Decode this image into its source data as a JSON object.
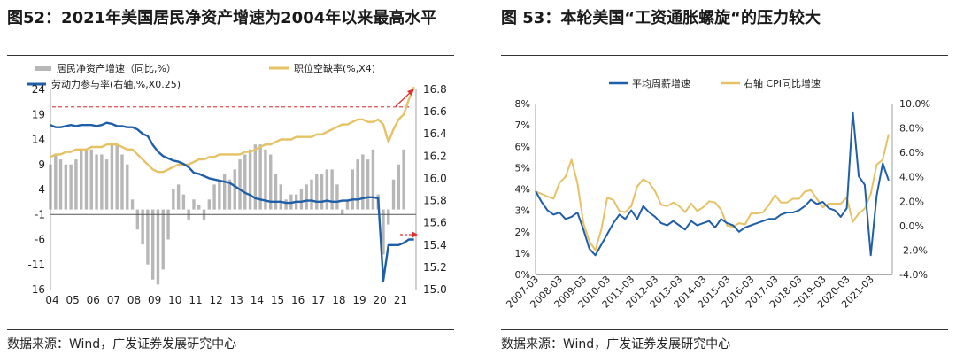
{
  "panels": [
    {
      "title": "图52：2021年美国居民净资产增速为2004年以来最高水平",
      "source": "数据来源：Wind，广发证券发展研究中心"
    },
    {
      "title": "图 53：本轮美国“工资通胀螺旋“的压力较大",
      "source": "数据来源：Wind，广发证券发展研究中心"
    }
  ],
  "chart_data": [
    {
      "type": "bar+line",
      "title": "",
      "x_tick_labels": [
        "04",
        "05",
        "06",
        "07",
        "08",
        "09",
        "10",
        "11",
        "12",
        "13",
        "14",
        "15",
        "16",
        "17",
        "18",
        "19",
        "20",
        "21"
      ],
      "left_axis": {
        "ticks": [
          24,
          19,
          14,
          9,
          4,
          -1,
          -6,
          -11,
          -16
        ],
        "ylim": [
          -16,
          24
        ]
      },
      "right_axis": {
        "ticks": [
          16.8,
          16.6,
          16.4,
          16.2,
          16.0,
          15.8,
          15.6,
          15.4,
          15.2,
          15.0
        ],
        "ylim": [
          15.0,
          16.8
        ]
      },
      "reference_line": {
        "axis": "left",
        "value": 20.5,
        "style": "dashed",
        "color": "#e84b4b"
      },
      "series": [
        {
          "name": "居民净资产增速（同比,%）",
          "kind": "bar",
          "axis": "left",
          "color": "#b7b7b7",
          "x": [
            2004.0,
            2004.25,
            2004.5,
            2004.75,
            2005.0,
            2005.25,
            2005.5,
            2005.75,
            2006.0,
            2006.25,
            2006.5,
            2006.75,
            2007.0,
            2007.25,
            2007.5,
            2007.75,
            2008.0,
            2008.25,
            2008.5,
            2008.75,
            2009.0,
            2009.25,
            2009.5,
            2009.75,
            2010.0,
            2010.25,
            2010.5,
            2010.75,
            2011.0,
            2011.25,
            2011.5,
            2011.75,
            2012.0,
            2012.25,
            2012.5,
            2012.75,
            2013.0,
            2013.25,
            2013.5,
            2013.75,
            2014.0,
            2014.25,
            2014.5,
            2014.75,
            2015.0,
            2015.25,
            2015.5,
            2015.75,
            2016.0,
            2016.25,
            2016.5,
            2016.75,
            2017.0,
            2017.25,
            2017.5,
            2017.75,
            2018.0,
            2018.25,
            2018.5,
            2018.75,
            2019.0,
            2019.25,
            2019.5,
            2019.75,
            2020.0,
            2020.25,
            2020.5,
            2020.75,
            2021.0,
            2021.25
          ],
          "values": [
            9,
            11,
            10,
            9,
            9,
            10,
            12,
            12,
            12,
            11,
            11,
            10,
            13,
            13,
            11,
            9,
            2,
            -4,
            -7,
            -11,
            -14,
            -15,
            -12,
            -6,
            4,
            5,
            3,
            -2,
            2,
            1,
            -2,
            2,
            5,
            6,
            7,
            6,
            8,
            10,
            11,
            12,
            13,
            13,
            12,
            11,
            7,
            5,
            2,
            3,
            3,
            4,
            5,
            6,
            7,
            7,
            8,
            8,
            5,
            -1,
            2,
            8,
            10,
            11,
            10,
            12,
            3,
            -9,
            -3,
            6,
            9,
            12
          ]
        },
        {
          "name": "职位空缺率(%,X4)",
          "kind": "line",
          "axis": "left",
          "color": "#e6c265",
          "x": [
            2004.0,
            2004.25,
            2004.5,
            2004.75,
            2005.0,
            2005.25,
            2005.5,
            2005.75,
            2006.0,
            2006.25,
            2006.5,
            2006.75,
            2007.0,
            2007.25,
            2007.5,
            2007.75,
            2008.0,
            2008.25,
            2008.5,
            2008.75,
            2009.0,
            2009.25,
            2009.5,
            2009.75,
            2010.0,
            2010.25,
            2010.5,
            2010.75,
            2011.0,
            2011.25,
            2011.5,
            2011.75,
            2012.0,
            2012.25,
            2012.5,
            2012.75,
            2013.0,
            2013.25,
            2013.5,
            2013.75,
            2014.0,
            2014.25,
            2014.5,
            2014.75,
            2015.0,
            2015.25,
            2015.5,
            2015.75,
            2016.0,
            2016.25,
            2016.5,
            2016.75,
            2017.0,
            2017.25,
            2017.5,
            2017.75,
            2018.0,
            2018.25,
            2018.5,
            2018.75,
            2019.0,
            2019.25,
            2019.5,
            2019.75,
            2020.0,
            2020.25,
            2020.5,
            2020.75,
            2021.0,
            2021.25,
            2021.5,
            2021.75
          ],
          "values": [
            10.5,
            11,
            11,
            11.5,
            11.5,
            12,
            12,
            12,
            12.5,
            12.5,
            12.5,
            13,
            13,
            13,
            12.5,
            12,
            12,
            11,
            10,
            9,
            8,
            7.5,
            7.5,
            8,
            8.5,
            9,
            9,
            9,
            9.5,
            10,
            10,
            10.5,
            10.5,
            11,
            11,
            11,
            11,
            11,
            11.5,
            11.5,
            12,
            12.5,
            13,
            13,
            13.5,
            14,
            14,
            14,
            14.5,
            14.5,
            14.5,
            14.5,
            15,
            15,
            15.5,
            16,
            16.5,
            17,
            17,
            17.5,
            18,
            18,
            17.5,
            17.5,
            18,
            17,
            13.5,
            16,
            18,
            19,
            22,
            24.5
          ]
        },
        {
          "name": "劳动力参与率(右轴,%,X0.25)",
          "kind": "line",
          "axis": "right",
          "color": "#1f5ea8",
          "x": [
            2004.0,
            2004.25,
            2004.5,
            2004.75,
            2005.0,
            2005.25,
            2005.5,
            2005.75,
            2006.0,
            2006.25,
            2006.5,
            2006.75,
            2007.0,
            2007.25,
            2007.5,
            2007.75,
            2008.0,
            2008.25,
            2008.5,
            2008.75,
            2009.0,
            2009.25,
            2009.5,
            2009.75,
            2010.0,
            2010.25,
            2010.5,
            2010.75,
            2011.0,
            2011.25,
            2011.5,
            2011.75,
            2012.0,
            2012.25,
            2012.5,
            2012.75,
            2013.0,
            2013.25,
            2013.5,
            2013.75,
            2014.0,
            2014.25,
            2014.5,
            2014.75,
            2015.0,
            2015.25,
            2015.5,
            2015.75,
            2016.0,
            2016.25,
            2016.5,
            2016.75,
            2017.0,
            2017.25,
            2017.5,
            2017.75,
            2018.0,
            2018.25,
            2018.5,
            2018.75,
            2019.0,
            2019.25,
            2019.5,
            2019.75,
            2020.0,
            2020.25,
            2020.5,
            2020.75,
            2021.0,
            2021.25,
            2021.5,
            2021.75
          ],
          "values": [
            16.48,
            16.46,
            16.46,
            16.47,
            16.48,
            16.47,
            16.48,
            16.48,
            16.48,
            16.47,
            16.48,
            16.5,
            16.49,
            16.47,
            16.47,
            16.46,
            16.46,
            16.44,
            16.4,
            16.38,
            16.3,
            16.24,
            16.2,
            16.18,
            16.16,
            16.15,
            16.13,
            16.1,
            16.05,
            16.04,
            16.02,
            16.0,
            15.99,
            15.98,
            15.97,
            15.96,
            15.93,
            15.9,
            15.87,
            15.85,
            15.82,
            15.81,
            15.8,
            15.79,
            15.79,
            15.79,
            15.78,
            15.78,
            15.79,
            15.79,
            15.8,
            15.8,
            15.79,
            15.79,
            15.8,
            15.79,
            15.79,
            15.8,
            15.8,
            15.81,
            15.81,
            15.82,
            15.83,
            15.83,
            15.82,
            15.08,
            15.4,
            15.4,
            15.4,
            15.42,
            15.45,
            15.45
          ]
        }
      ],
      "annotations": [
        {
          "type": "arrow",
          "color": "#e03030",
          "near": "top-right"
        },
        {
          "type": "arrow",
          "color": "#e03030",
          "near": "right"
        }
      ]
    },
    {
      "type": "line",
      "title": "",
      "x_tick_labels": [
        "2007-03",
        "2008-03",
        "2009-03",
        "2010-03",
        "2011-03",
        "2012-03",
        "2013-03",
        "2014-03",
        "2015-03",
        "2016-03",
        "2017-03",
        "2018-03",
        "2019-03",
        "2020-03",
        "2021-03"
      ],
      "left_axis": {
        "ticks": [
          "8%",
          "7%",
          "6%",
          "5%",
          "4%",
          "3%",
          "2%",
          "1%",
          "0%"
        ],
        "ylim": [
          0,
          8
        ]
      },
      "right_axis": {
        "ticks": [
          "10.0%",
          "8.0%",
          "6.0%",
          "4.0%",
          "2.0%",
          "0.0%",
          "-2.0%",
          "-4.0%"
        ],
        "ylim": [
          -4,
          10
        ]
      },
      "legend_position": "top",
      "series": [
        {
          "name": "平均周薪增速",
          "axis": "left",
          "color": "#1f5ea8",
          "x": [
            2007.0,
            2007.25,
            2007.5,
            2007.75,
            2008.0,
            2008.25,
            2008.5,
            2008.75,
            2009.0,
            2009.25,
            2009.5,
            2009.75,
            2010.0,
            2010.25,
            2010.5,
            2010.75,
            2011.0,
            2011.25,
            2011.5,
            2011.75,
            2012.0,
            2012.25,
            2012.5,
            2012.75,
            2013.0,
            2013.25,
            2013.5,
            2013.75,
            2014.0,
            2014.25,
            2014.5,
            2014.75,
            2015.0,
            2015.25,
            2015.5,
            2015.75,
            2016.0,
            2016.25,
            2016.5,
            2016.75,
            2017.0,
            2017.25,
            2017.5,
            2017.75,
            2018.0,
            2018.25,
            2018.5,
            2018.75,
            2019.0,
            2019.25,
            2019.5,
            2019.75,
            2020.0,
            2020.25,
            2020.5,
            2020.75,
            2021.0,
            2021.25,
            2021.5,
            2021.75
          ],
          "values": [
            3.9,
            3.4,
            3.0,
            2.8,
            2.9,
            2.6,
            2.7,
            2.9,
            2.1,
            1.2,
            0.9,
            1.4,
            1.9,
            2.4,
            2.8,
            2.6,
            3.0,
            2.6,
            3.2,
            2.9,
            2.7,
            2.4,
            2.3,
            2.5,
            2.3,
            2.1,
            2.5,
            2.3,
            2.4,
            2.5,
            2.2,
            2.6,
            2.4,
            2.3,
            2.0,
            2.2,
            2.3,
            2.4,
            2.5,
            2.6,
            2.6,
            2.8,
            2.9,
            2.9,
            3.0,
            3.2,
            3.5,
            3.3,
            3.4,
            3.1,
            3.0,
            2.7,
            3.1,
            7.6,
            4.6,
            4.2,
            0.9,
            3.7,
            5.2,
            4.4
          ]
        },
        {
          "name": "右轴 CPI同比增速",
          "axis": "right",
          "color": "#e6c265",
          "x": [
            2007.0,
            2007.25,
            2007.5,
            2007.75,
            2008.0,
            2008.25,
            2008.5,
            2008.75,
            2009.0,
            2009.25,
            2009.5,
            2009.75,
            2010.0,
            2010.25,
            2010.5,
            2010.75,
            2011.0,
            2011.25,
            2011.5,
            2011.75,
            2012.0,
            2012.25,
            2012.5,
            2012.75,
            2013.0,
            2013.25,
            2013.5,
            2013.75,
            2014.0,
            2014.25,
            2014.5,
            2014.75,
            2015.0,
            2015.25,
            2015.5,
            2015.75,
            2016.0,
            2016.25,
            2016.5,
            2016.75,
            2017.0,
            2017.25,
            2017.5,
            2017.75,
            2018.0,
            2018.25,
            2018.5,
            2018.75,
            2019.0,
            2019.25,
            2019.5,
            2019.75,
            2020.0,
            2020.25,
            2020.5,
            2020.75,
            2021.0,
            2021.25,
            2021.5,
            2021.75
          ],
          "values": [
            2.8,
            2.6,
            2.4,
            2.2,
            3.5,
            4.0,
            5.4,
            3.5,
            0.2,
            -1.3,
            -2.0,
            -0.3,
            2.3,
            2.1,
            1.2,
            1.1,
            1.6,
            3.2,
            3.8,
            3.5,
            2.8,
            1.7,
            1.6,
            1.9,
            1.6,
            1.1,
            1.8,
            1.2,
            1.5,
            2.0,
            1.9,
            1.3,
            0.0,
            -0.1,
            0.2,
            0.1,
            1.0,
            1.0,
            1.1,
            1.7,
            2.5,
            1.9,
            1.9,
            2.2,
            2.2,
            2.8,
            2.9,
            2.2,
            1.5,
            1.8,
            1.8,
            1.8,
            2.3,
            0.3,
            1.0,
            1.4,
            2.6,
            5.0,
            5.4,
            7.5
          ]
        }
      ]
    }
  ]
}
